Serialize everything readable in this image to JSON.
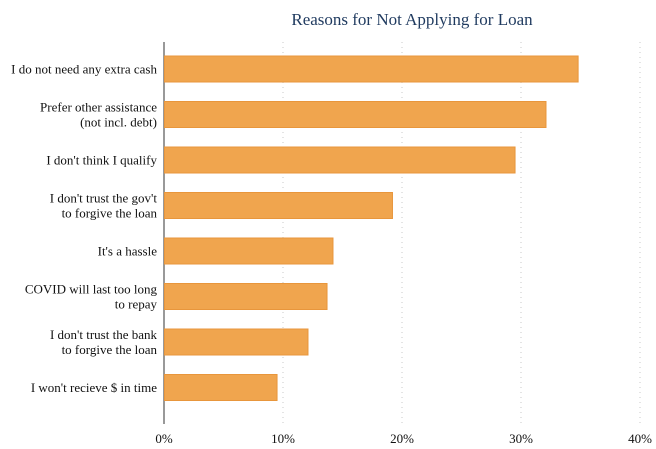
{
  "chart_data": {
    "type": "bar",
    "orientation": "horizontal",
    "title": "Reasons for Not Applying for Loan",
    "xlabel": "",
    "ylabel": "",
    "categories": [
      [
        "I do not need any extra cash"
      ],
      [
        "Prefer other assistance",
        "(not incl. debt)"
      ],
      [
        "I don't think I qualify"
      ],
      [
        "I don't trust the gov't",
        "to forgive the loan"
      ],
      [
        "It's a hassle"
      ],
      [
        "COVID will last too long",
        "to repay"
      ],
      [
        "I don't trust the bank",
        "to forgive the loan"
      ],
      [
        "I won't recieve $ in time"
      ]
    ],
    "values": [
      34.8,
      32.1,
      29.5,
      19.2,
      14.2,
      13.7,
      12.1,
      9.5
    ],
    "xlim": [
      0,
      40
    ],
    "xticks": [
      0,
      10,
      20,
      30,
      40
    ],
    "tick_labels": [
      "0%",
      "10%",
      "20%",
      "30%",
      "40%"
    ],
    "grid": true,
    "bar_color": "#f0a54e",
    "bar_edge_color": "#e8963c",
    "title_color": "#1f3a5f"
  }
}
